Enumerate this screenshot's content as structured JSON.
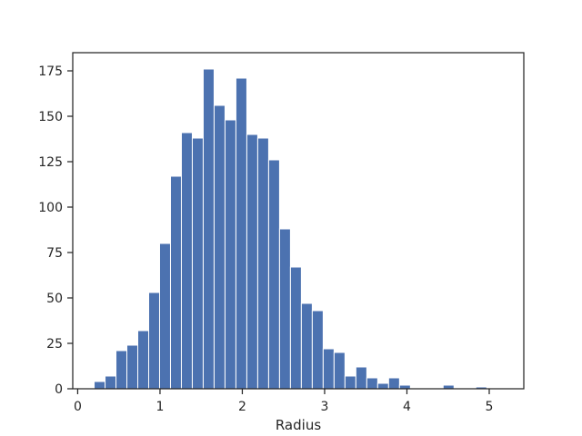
{
  "chart_data": {
    "type": "bar",
    "title": "",
    "xlabel": "Radius",
    "ylabel": "",
    "xlim": [
      -0.06,
      5.42
    ],
    "ylim": [
      0,
      185
    ],
    "bin_width": 0.1325,
    "bin_start": 0.2,
    "xticks": [
      0,
      1,
      2,
      3,
      4,
      5
    ],
    "xtick_labels": [
      "0",
      "1",
      "2",
      "3",
      "4",
      "5"
    ],
    "yticks": [
      0,
      25,
      50,
      75,
      100,
      125,
      150,
      175
    ],
    "ytick_labels": [
      "0",
      "25",
      "50",
      "75",
      "100",
      "125",
      "150",
      "175"
    ],
    "counts": [
      4,
      7,
      21,
      24,
      32,
      53,
      80,
      117,
      141,
      138,
      176,
      156,
      148,
      171,
      140,
      138,
      126,
      88,
      67,
      47,
      43,
      22,
      20,
      7,
      12,
      6,
      3,
      6,
      2,
      0,
      0,
      0,
      2,
      0,
      0,
      1
    ],
    "grid": false,
    "legend": "none",
    "bar_color": "#4c72b0"
  }
}
